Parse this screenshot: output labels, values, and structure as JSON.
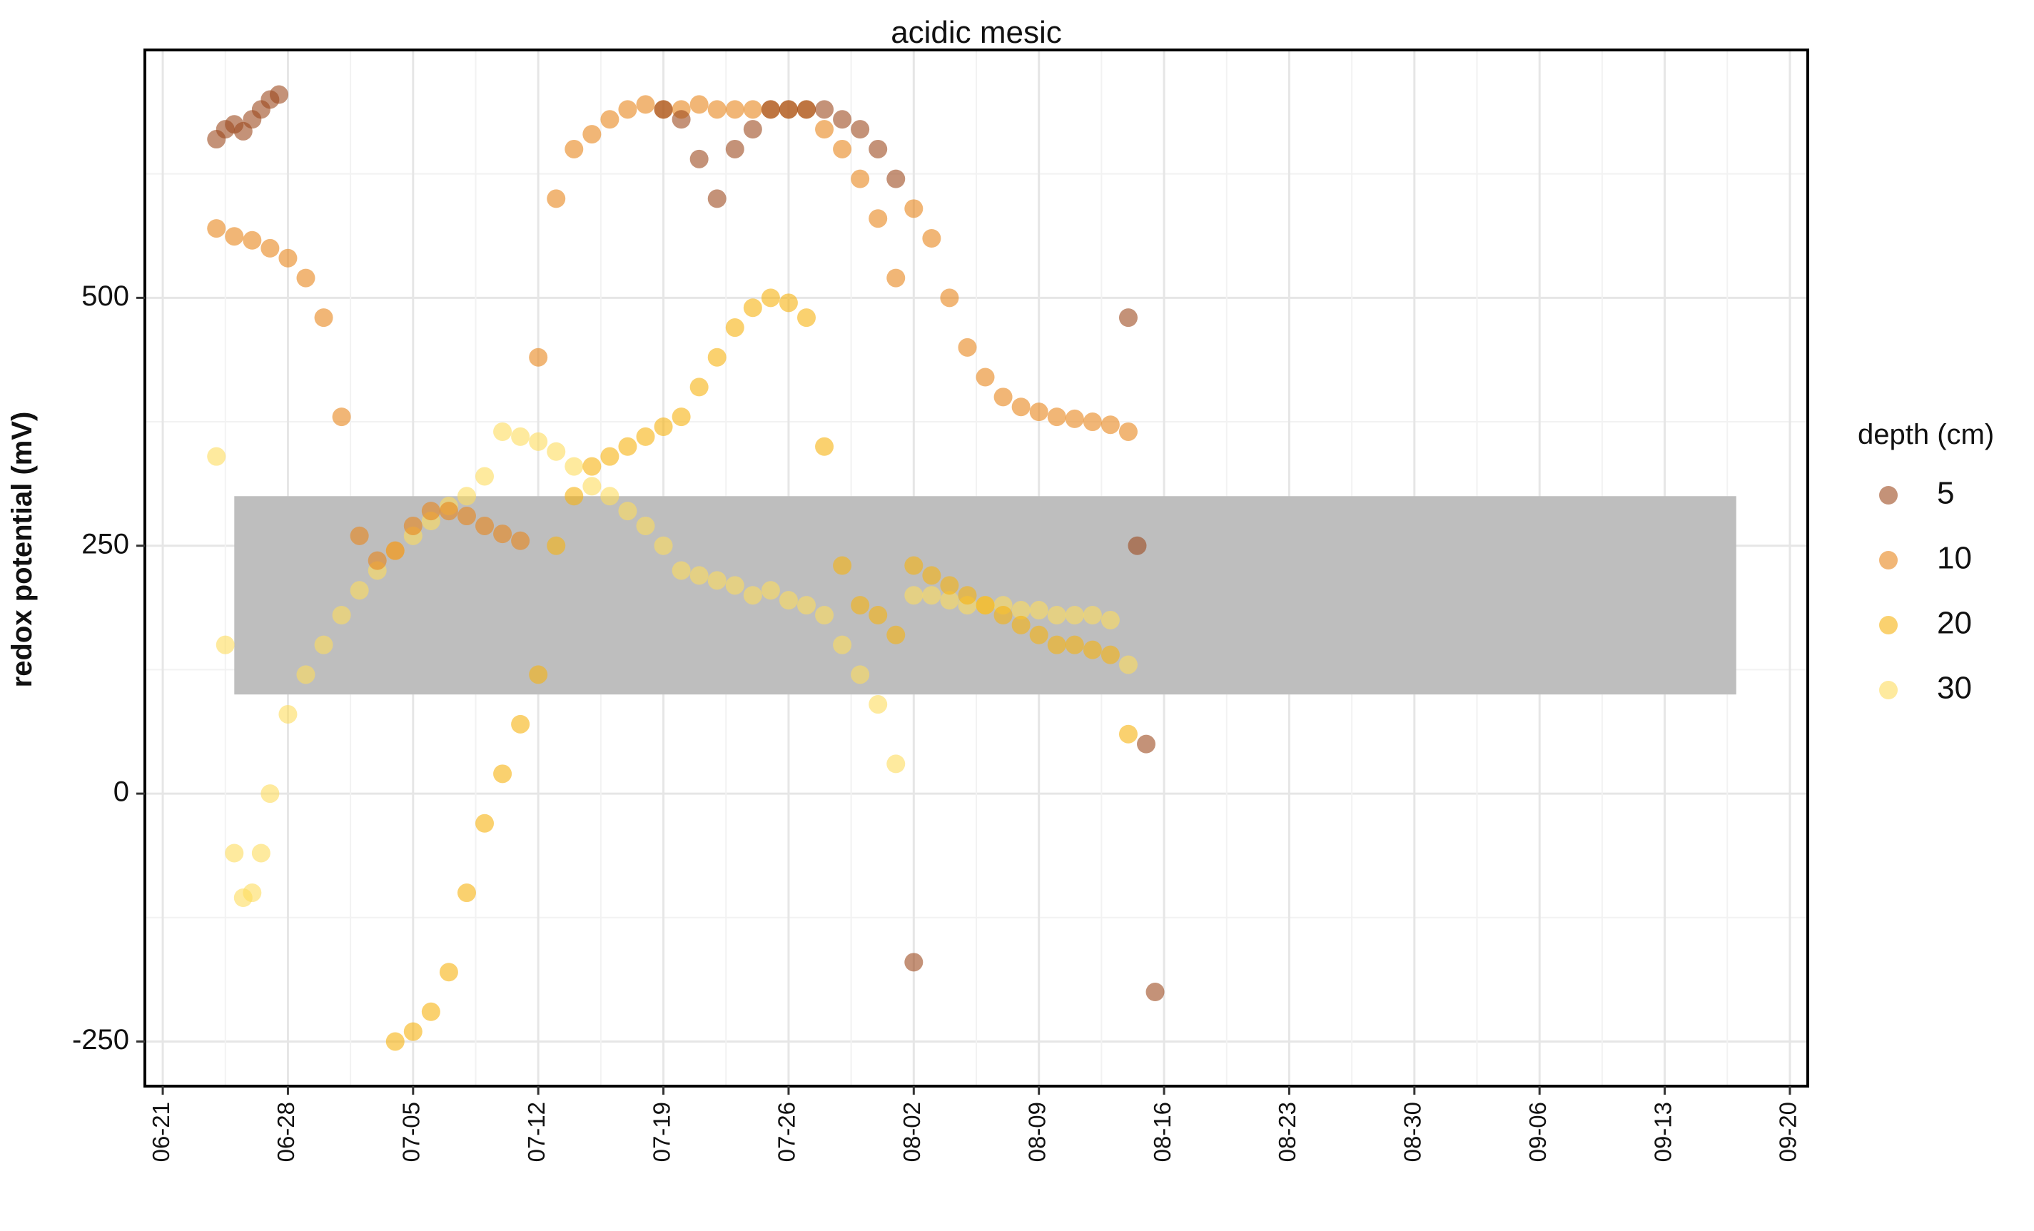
{
  "chart_data": {
    "type": "scatter",
    "title": "acidic mesic",
    "ylabel": "redox potential (mV)",
    "xlabel": "",
    "x_axis": {
      "kind": "date",
      "range": [
        "2021-06-20",
        "2021-09-21"
      ],
      "tick_labels": [
        "06-21",
        "06-28",
        "07-05",
        "07-12",
        "07-19",
        "07-26",
        "08-02",
        "08-09",
        "08-16",
        "08-23",
        "08-30",
        "09-06",
        "09-13",
        "09-20"
      ]
    },
    "y_axis": {
      "range": [
        -295,
        750
      ],
      "ticks": [
        -250,
        0,
        250,
        500
      ],
      "tick_labels": [
        "-250",
        "0",
        "250",
        "500"
      ]
    },
    "grid": true,
    "shaded_band": {
      "y_min": 100,
      "y_max": 300,
      "x_start": "2021-06-25",
      "x_end": "2021-09-17",
      "color": "#bebebe"
    },
    "legend": {
      "title": "depth (cm)",
      "position": "right",
      "entries": [
        {
          "label": "5",
          "color": "#9c4a1e"
        },
        {
          "label": "10",
          "color": "#e8861a"
        },
        {
          "label": "20",
          "color": "#f7b20f"
        },
        {
          "label": "30",
          "color": "#fddc5e"
        }
      ]
    },
    "series": [
      {
        "name": "30",
        "color": "#fddc5e",
        "x": [
          "2021-06-24",
          "2021-06-24T12:00",
          "2021-06-25",
          "2021-06-25T12:00",
          "2021-06-26",
          "2021-06-26T12:00",
          "2021-06-27",
          "2021-06-28",
          "2021-06-29",
          "2021-06-30",
          "2021-07-01",
          "2021-07-02",
          "2021-07-03",
          "2021-07-04",
          "2021-07-05",
          "2021-07-06",
          "2021-07-07",
          "2021-07-08",
          "2021-07-09",
          "2021-07-10",
          "2021-07-11",
          "2021-07-12",
          "2021-07-13",
          "2021-07-14",
          "2021-07-15",
          "2021-07-16",
          "2021-07-17",
          "2021-07-18",
          "2021-07-19",
          "2021-07-20",
          "2021-07-21",
          "2021-07-22",
          "2021-07-23",
          "2021-07-24",
          "2021-07-25",
          "2021-07-26",
          "2021-07-27",
          "2021-07-28",
          "2021-07-29",
          "2021-07-30",
          "2021-07-31",
          "2021-08-01",
          "2021-08-02",
          "2021-08-03",
          "2021-08-04",
          "2021-08-05",
          "2021-08-06",
          "2021-08-07",
          "2021-08-08",
          "2021-08-09",
          "2021-08-10",
          "2021-08-11",
          "2021-08-12",
          "2021-08-13",
          "2021-08-14"
        ],
        "y": [
          340,
          150,
          -60,
          -105,
          -100,
          -60,
          0,
          80,
          120,
          150,
          180,
          205,
          225,
          245,
          260,
          275,
          290,
          300,
          320,
          365,
          360,
          355,
          345,
          330,
          310,
          300,
          285,
          270,
          250,
          225,
          220,
          215,
          210,
          200,
          205,
          195,
          190,
          180,
          150,
          120,
          90,
          30,
          200,
          200,
          195,
          190,
          190,
          190,
          185,
          185,
          180,
          180,
          180,
          175,
          130
        ]
      },
      {
        "name": "20",
        "color": "#f7b20f",
        "x": [
          "2021-07-04",
          "2021-07-05",
          "2021-07-06",
          "2021-07-07",
          "2021-07-08",
          "2021-07-09",
          "2021-07-10",
          "2021-07-11",
          "2021-07-12",
          "2021-07-13",
          "2021-07-14",
          "2021-07-15",
          "2021-07-16",
          "2021-07-17",
          "2021-07-18",
          "2021-07-19",
          "2021-07-20",
          "2021-07-21",
          "2021-07-22",
          "2021-07-23",
          "2021-07-24",
          "2021-07-25",
          "2021-07-26",
          "2021-07-27",
          "2021-07-28",
          "2021-07-29",
          "2021-07-30",
          "2021-07-31",
          "2021-08-01",
          "2021-08-02",
          "2021-08-03",
          "2021-08-04",
          "2021-08-05",
          "2021-08-06",
          "2021-08-07",
          "2021-08-08",
          "2021-08-09",
          "2021-08-10",
          "2021-08-11",
          "2021-08-12",
          "2021-08-13",
          "2021-08-14"
        ],
        "y": [
          -250,
          -240,
          -220,
          -180,
          -100,
          -30,
          20,
          70,
          120,
          250,
          300,
          330,
          340,
          350,
          360,
          370,
          380,
          410,
          440,
          470,
          490,
          500,
          495,
          480,
          350,
          230,
          190,
          180,
          160,
          230,
          220,
          210,
          200,
          190,
          180,
          170,
          160,
          150,
          150,
          145,
          140,
          60
        ]
      },
      {
        "name": "10",
        "color": "#e8861a",
        "x": [
          "2021-06-24",
          "2021-06-25",
          "2021-06-26",
          "2021-06-27",
          "2021-06-28",
          "2021-06-29",
          "2021-06-30",
          "2021-07-01",
          "2021-07-02",
          "2021-07-03",
          "2021-07-04",
          "2021-07-05",
          "2021-07-06",
          "2021-07-07",
          "2021-07-08",
          "2021-07-09",
          "2021-07-10",
          "2021-07-11",
          "2021-07-12",
          "2021-07-13",
          "2021-07-14",
          "2021-07-15",
          "2021-07-16",
          "2021-07-17",
          "2021-07-18",
          "2021-07-19",
          "2021-07-20",
          "2021-07-21",
          "2021-07-22",
          "2021-07-23",
          "2021-07-24",
          "2021-07-25",
          "2021-07-26",
          "2021-07-27",
          "2021-07-28",
          "2021-07-29",
          "2021-07-30",
          "2021-07-31",
          "2021-08-01",
          "2021-08-02",
          "2021-08-03",
          "2021-08-04",
          "2021-08-05",
          "2021-08-06",
          "2021-08-07",
          "2021-08-08",
          "2021-08-09",
          "2021-08-10",
          "2021-08-11",
          "2021-08-12",
          "2021-08-13",
          "2021-08-14"
        ],
        "y": [
          570,
          562,
          558,
          550,
          540,
          520,
          480,
          380,
          260,
          235,
          245,
          270,
          285,
          285,
          280,
          270,
          262,
          255,
          440,
          600,
          650,
          665,
          680,
          690,
          695,
          690,
          690,
          695,
          690,
          690,
          690,
          690,
          690,
          690,
          670,
          650,
          620,
          580,
          520,
          590,
          560,
          500,
          450,
          420,
          400,
          390,
          385,
          380,
          378,
          375,
          372,
          365
        ]
      },
      {
        "name": "5",
        "color": "#9c4a1e",
        "x": [
          "2021-06-24",
          "2021-06-24T12:00",
          "2021-06-25",
          "2021-06-25T12:00",
          "2021-06-26",
          "2021-06-26T12:00",
          "2021-06-27",
          "2021-06-27T12:00",
          "2021-07-19",
          "2021-07-20",
          "2021-07-21",
          "2021-07-22",
          "2021-07-23",
          "2021-07-24",
          "2021-07-25",
          "2021-07-26",
          "2021-07-27",
          "2021-07-28",
          "2021-07-29",
          "2021-07-30",
          "2021-07-31",
          "2021-08-01",
          "2021-08-02",
          "2021-08-14",
          "2021-08-14T12:00",
          "2021-08-15",
          "2021-08-15T12:00"
        ],
        "y": [
          660,
          670,
          675,
          668,
          680,
          690,
          700,
          705,
          690,
          680,
          640,
          600,
          650,
          670,
          690,
          690,
          690,
          690,
          680,
          670,
          650,
          620,
          -170,
          480,
          250,
          50,
          -200
        ]
      }
    ]
  }
}
